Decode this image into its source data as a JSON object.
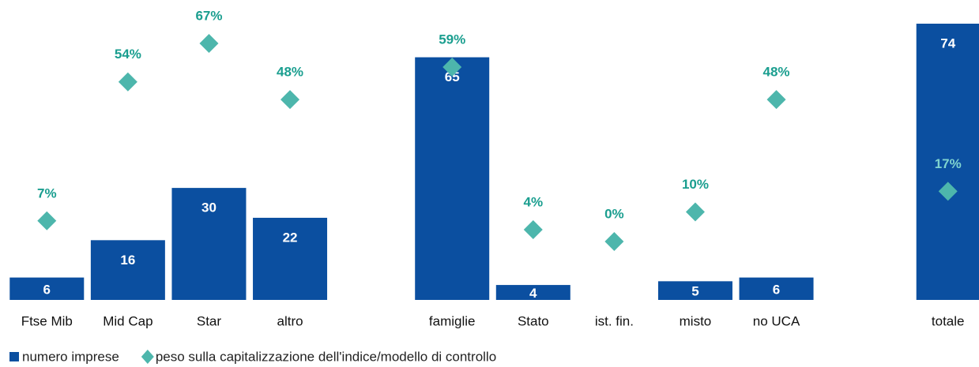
{
  "chart_data": {
    "type": "bar",
    "categories": [
      "Ftse Mib",
      "Mid Cap",
      "Star",
      "altro",
      null,
      "famiglie",
      "Stato",
      "ist. fin.",
      "misto",
      "no UCA",
      null,
      "totale"
    ],
    "series": [
      {
        "name": "numero imprese",
        "type": "bar",
        "color": "#0b4fa0",
        "values": [
          6,
          16,
          30,
          22,
          null,
          65,
          4,
          null,
          5,
          6,
          null,
          74
        ]
      },
      {
        "name": "peso sulla capitalizzazione dell'indice/modello di controllo",
        "type": "marker",
        "axis": "y2",
        "color": "#4db6ac",
        "values": [
          7,
          54,
          67,
          48,
          null,
          59,
          4,
          0,
          10,
          48,
          null,
          17
        ],
        "value_labels": [
          "7%",
          "54%",
          "67%",
          "48%",
          null,
          "59%",
          "4%",
          "0%",
          "10%",
          "48%",
          null,
          "17%"
        ]
      }
    ],
    "ylim": [
      0,
      74
    ],
    "y2lim": [
      0,
      67
    ],
    "legend": "bottom-left"
  }
}
